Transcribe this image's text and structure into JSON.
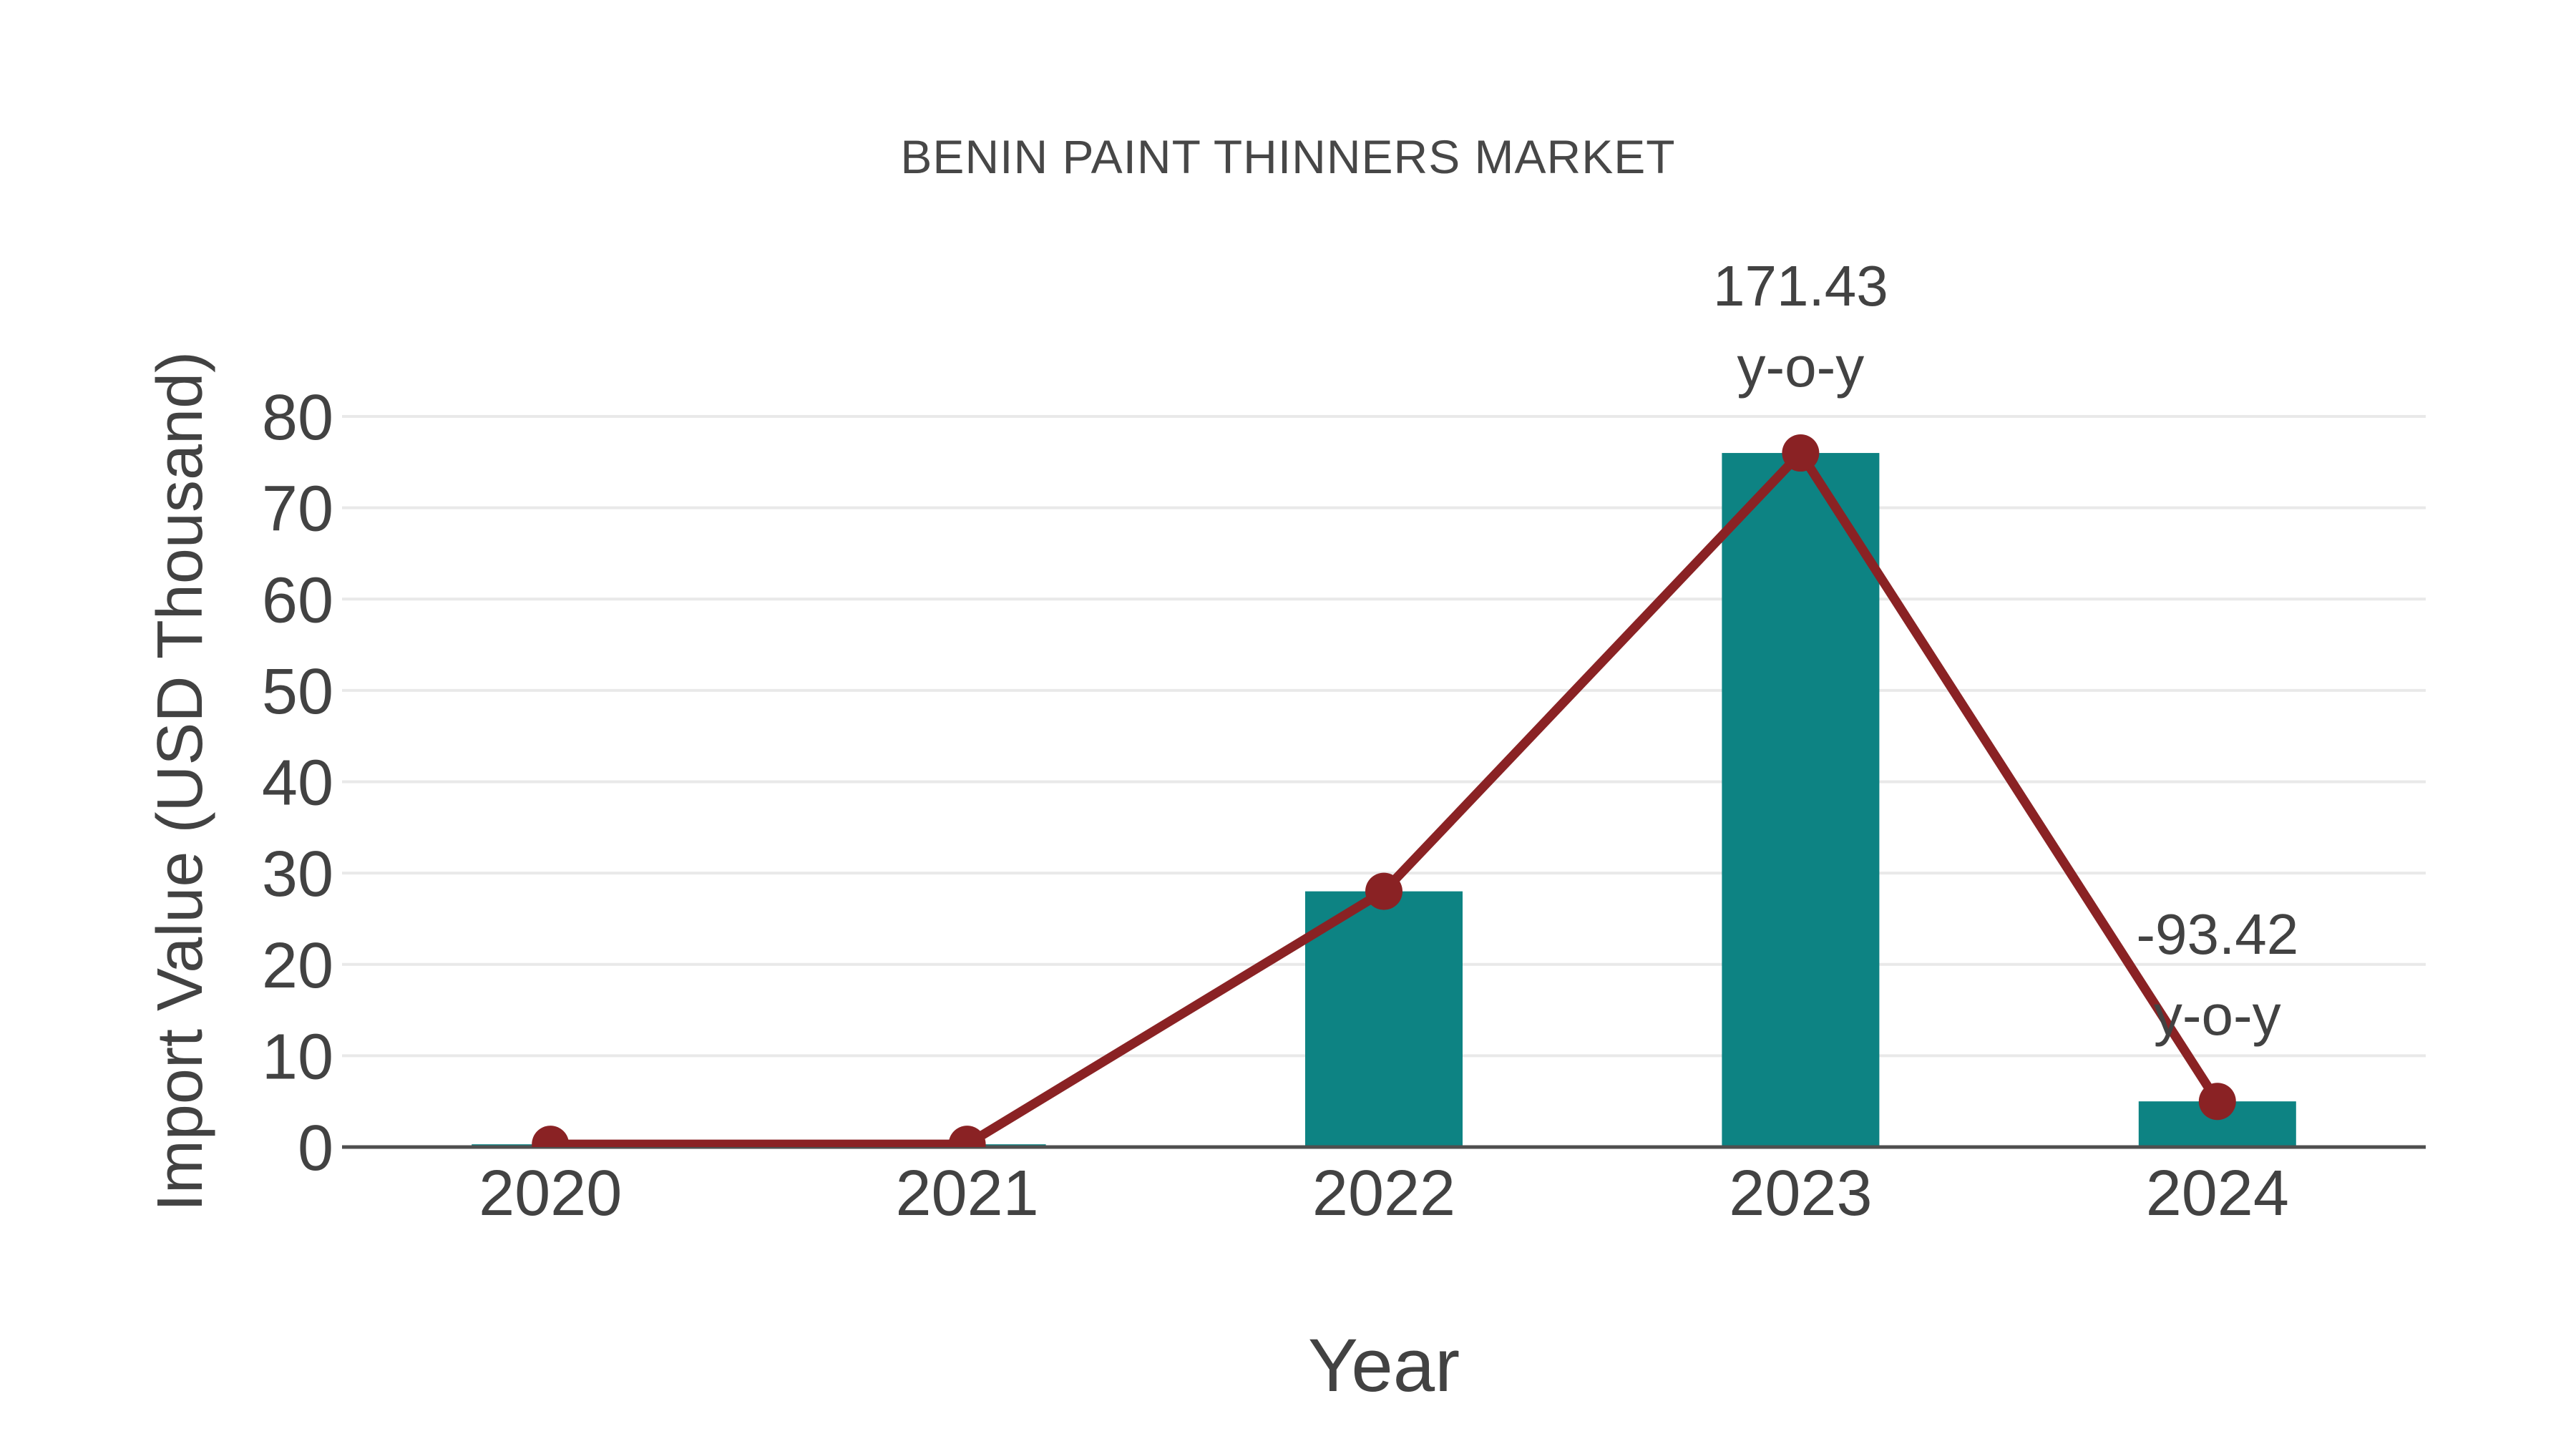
{
  "page": {
    "background": "#ffffff"
  },
  "chart": {
    "title": "BENIN PAINT THINNERS MARKET",
    "xlabel": "Year",
    "ylabel": "Import Value (USD Thousand)"
  },
  "chart_data": {
    "type": "bar",
    "subtype": "bar-with-line-overlay",
    "title": "BENIN PAINT THINNERS MARKET",
    "xlabel": "Year",
    "ylabel": "Import Value (USD Thousand)",
    "categories": [
      "2020",
      "2021",
      "2022",
      "2023",
      "2024"
    ],
    "series": [
      {
        "name": "Import Value bars",
        "type": "bar",
        "values": [
          0.3,
          0.3,
          28,
          76,
          5
        ]
      },
      {
        "name": "Import Value trend line",
        "type": "line",
        "values": [
          0.3,
          0.3,
          28,
          76,
          5
        ]
      }
    ],
    "ylim": [
      0,
      80
    ],
    "yticks": [
      0,
      10,
      20,
      30,
      40,
      50,
      60,
      70,
      80
    ],
    "grid": true,
    "legend": "none",
    "annotations": [
      {
        "category": "2023",
        "lines": [
          "171.43",
          "y-o-y"
        ]
      },
      {
        "category": "2024",
        "lines": [
          "-93.42",
          "y-o-y"
        ]
      }
    ]
  },
  "style": {
    "bar_color": "#0d8383",
    "line_color": "#8a2224",
    "marker_color": "#8a2224",
    "grid_color": "#e9e9e9",
    "axis_color": "#4f4f4f",
    "text_color": "#424242"
  }
}
